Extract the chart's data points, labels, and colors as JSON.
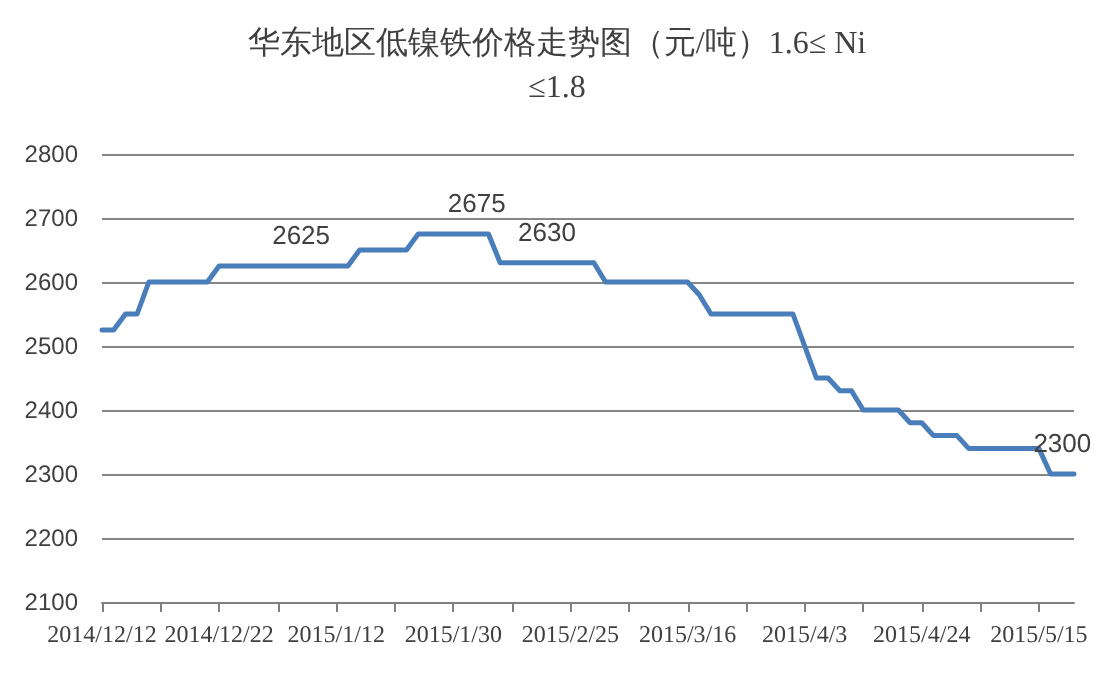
{
  "chart_data": {
    "type": "line",
    "title": "华东地区低镍铁价格走势图（元/吨）1.6≤ Ni ≤1.8",
    "categories": [
      "2014/12/12",
      null,
      null,
      null,
      null,
      null,
      null,
      null,
      null,
      null,
      "2014/12/22",
      null,
      null,
      null,
      null,
      null,
      null,
      null,
      null,
      null,
      "2015/1/12",
      null,
      null,
      null,
      null,
      null,
      null,
      null,
      null,
      null,
      "2015/1/30",
      null,
      null,
      null,
      null,
      null,
      null,
      null,
      null,
      null,
      "2015/2/25",
      null,
      null,
      null,
      null,
      null,
      null,
      null,
      null,
      null,
      "2015/3/16",
      null,
      null,
      null,
      null,
      null,
      null,
      null,
      null,
      null,
      "2015/4/3",
      null,
      null,
      null,
      null,
      null,
      null,
      null,
      null,
      null,
      "2015/4/24",
      null,
      null,
      null,
      null,
      null,
      null,
      null,
      null,
      null,
      "2015/5/15",
      null,
      null,
      null
    ],
    "series": [
      {
        "color": "#4a7ebb",
        "values": [
          2525,
          2525,
          2550,
          2550,
          2600,
          2600,
          2600,
          2600,
          2600,
          2600,
          2625,
          2625,
          2625,
          2625,
          2625,
          2625,
          2625,
          2625,
          2625,
          2625,
          2625,
          2625,
          2650,
          2650,
          2650,
          2650,
          2650,
          2675,
          2675,
          2675,
          2675,
          2675,
          2675,
          2675,
          2630,
          2630,
          2630,
          2630,
          2630,
          2630,
          2630,
          2630,
          2630,
          2600,
          2600,
          2600,
          2600,
          2600,
          2600,
          2600,
          2600,
          2580,
          2550,
          2550,
          2550,
          2550,
          2550,
          2550,
          2550,
          2550,
          2500,
          2450,
          2450,
          2430,
          2430,
          2400,
          2400,
          2400,
          2400,
          2380,
          2380,
          2360,
          2360,
          2360,
          2340,
          2340,
          2340,
          2340,
          2340,
          2340,
          2340,
          2300,
          2300,
          2300
        ],
        "value_labels": [
          null,
          null,
          null,
          null,
          null,
          null,
          null,
          null,
          null,
          null,
          null,
          null,
          null,
          null,
          null,
          null,
          null,
          "2625",
          null,
          null,
          null,
          null,
          null,
          null,
          null,
          null,
          null,
          null,
          null,
          null,
          null,
          null,
          "2675",
          null,
          null,
          null,
          null,
          null,
          "2630",
          null,
          null,
          null,
          null,
          null,
          null,
          null,
          null,
          null,
          null,
          null,
          null,
          null,
          null,
          null,
          null,
          null,
          null,
          null,
          null,
          null,
          null,
          null,
          null,
          null,
          null,
          null,
          null,
          null,
          null,
          null,
          null,
          null,
          null,
          null,
          null,
          null,
          null,
          null,
          null,
          null,
          null,
          null,
          "2300",
          null
        ]
      }
    ],
    "ylim": [
      2100,
      2800
    ],
    "yticks": [
      2100,
      2200,
      2300,
      2400,
      2500,
      2600,
      2700,
      2800
    ],
    "grid": "y",
    "marker": "none",
    "line_style": "solid"
  }
}
